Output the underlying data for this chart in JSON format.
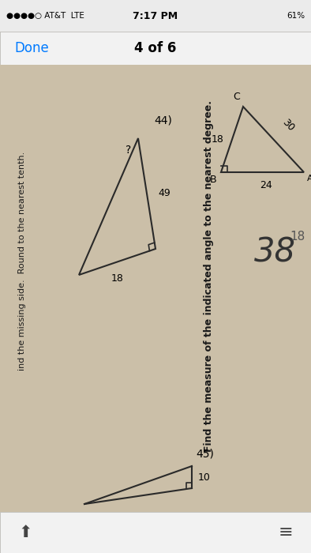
{
  "bg_color": "#ccc0a8",
  "status_bg": "#ebebeb",
  "nav_bg": "#f2f2f2",
  "toolbar_bg": "#f2f2f2",
  "status_text_color": "#000000",
  "done_color": "#007aff",
  "paper_color": "#cbbfa8",
  "line_color": "#2a2a2a",
  "text_color": "#1a1a1a",
  "status_left": "●●●●○ AT&T  LTE",
  "status_time": "7:17 PM",
  "status_battery": "61%",
  "nav_done": "Done",
  "nav_page": "4 of 6",
  "title": "Find the measure of the indicated angle to the nearest degree.",
  "prev_text": "ind the missing side.  Round to the nearest tenth.",
  "prob44_label": "44)",
  "prob44_angle": "?",
  "prob44_hyp": "49",
  "prob44_base": "18",
  "prob45_label": "45)",
  "prob45_base": "10",
  "tri2_C": "C",
  "tri2_B": "B",
  "tri2_A": "A",
  "tri2_CB": "18",
  "tri2_CA": "30",
  "tri2_BA": "24",
  "answer_big": "38",
  "answer_small": "18"
}
